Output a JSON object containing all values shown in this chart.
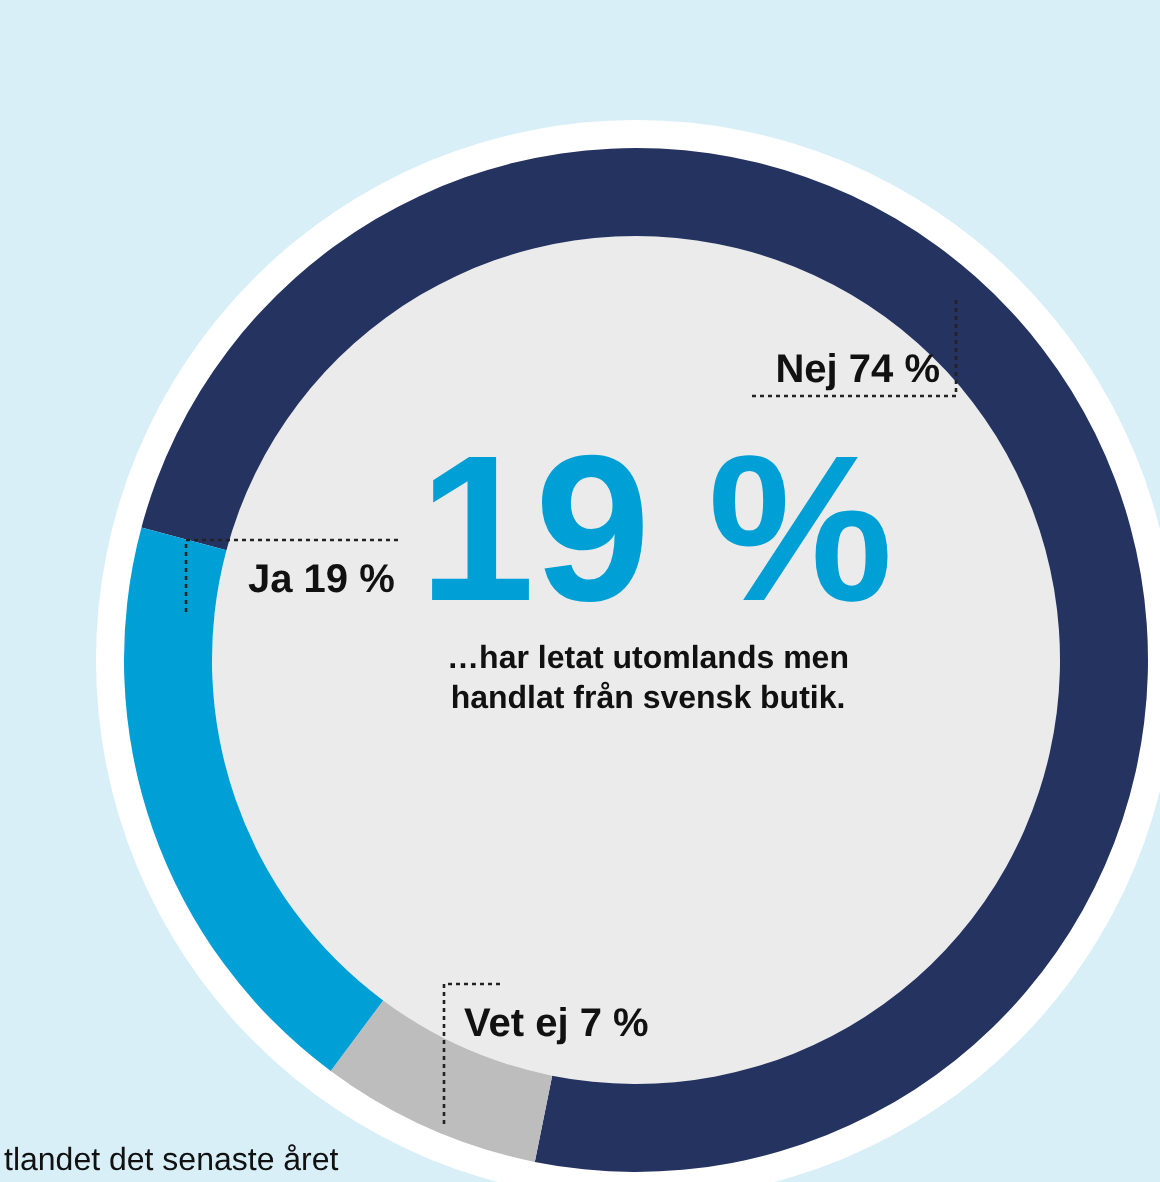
{
  "chart_data": {
    "type": "donut",
    "categories": [
      "Nej",
      "Vet ej",
      "Ja"
    ],
    "values": [
      74,
      7,
      19
    ],
    "colors": [
      "#253360",
      "#bdbdbd",
      "#00a0d6"
    ],
    "value_labels": [
      "74 %",
      "7 %",
      "19 %"
    ],
    "annotations": [
      "19 %",
      "…har letat utomlands men",
      "handlat från svensk butik.",
      "tlandet det senaste året"
    ]
  }
}
